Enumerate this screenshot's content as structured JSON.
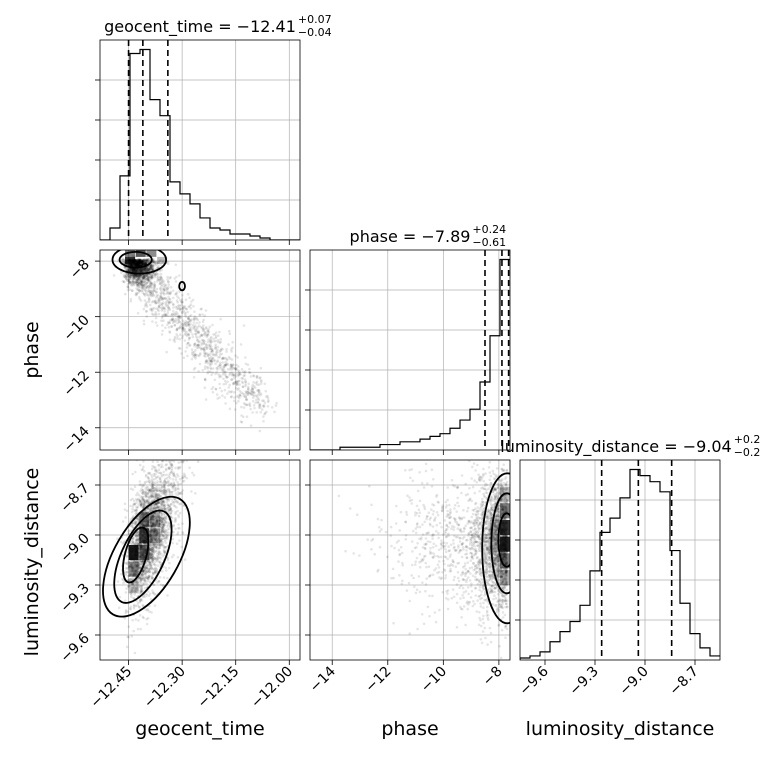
{
  "chart_data": {
    "type": "corner",
    "parameters": [
      "geocent_time",
      "phase",
      "luminosity_distance"
    ],
    "axis_labels": [
      "geocent_time",
      "phase",
      "luminosity_distance"
    ],
    "ranges": {
      "geocent_time": [
        -12.53,
        -11.97
      ],
      "phase": [
        -14.8,
        -7.6
      ],
      "luminosity_distance": [
        -9.75,
        -8.55
      ]
    },
    "ticks": {
      "geocent_time": [
        -12.45,
        -12.3,
        -12.15,
        -12.0
      ],
      "phase": [
        -14,
        -12,
        -10,
        -8
      ],
      "luminosity_distance": [
        -9.6,
        -9.3,
        -9.0,
        -8.7
      ]
    },
    "tick_labels": {
      "geocent_time": [
        "−12.45",
        "−12.30",
        "−12.15",
        "−12.00"
      ],
      "phase": [
        "−14",
        "−12",
        "−10",
        "−8"
      ],
      "luminosity_distance": [
        "−9.6",
        "−9.3",
        "−9.0",
        "−8.7"
      ]
    },
    "titles": {
      "geocent_time": {
        "prefix": "geocent_time = −12.41",
        "sup": "+0.07",
        "sub": "−0.04"
      },
      "phase": {
        "prefix": "phase = −7.89",
        "sup": "+0.24",
        "sub": "−0.61"
      },
      "luminosity_distance": {
        "prefix": "luminosity_distance = −9.04",
        "sup": "+0.20",
        "sub": "−0.22"
      }
    },
    "quantiles": {
      "geocent_time": [
        -12.45,
        -12.41,
        -12.34
      ],
      "phase": [
        -8.5,
        -7.89,
        -7.65
      ],
      "luminosity_distance": [
        -9.26,
        -9.04,
        -8.84
      ]
    },
    "histograms": {
      "geocent_time": {
        "edges": [
          -12.53,
          -12.502,
          -12.474,
          -12.446,
          -12.418,
          -12.39,
          -12.362,
          -12.334,
          -12.306,
          -12.278,
          -12.25,
          -12.222,
          -12.194,
          -12.166,
          -12.138,
          -12.11,
          -12.082,
          -12.054,
          -12.026,
          -11.998,
          -11.97
        ],
        "counts": [
          0.0,
          0.06,
          0.32,
          0.93,
          0.95,
          0.7,
          0.62,
          0.29,
          0.23,
          0.18,
          0.11,
          0.06,
          0.05,
          0.03,
          0.03,
          0.02,
          0.01,
          0.0,
          0.0,
          0.0
        ]
      },
      "phase": {
        "edges": [
          -14.8,
          -14.44,
          -14.08,
          -13.72,
          -13.36,
          -13.0,
          -12.64,
          -12.28,
          -11.92,
          -11.56,
          -11.2,
          -10.84,
          -10.48,
          -10.12,
          -9.76,
          -9.4,
          -9.04,
          -8.68,
          -8.32,
          -7.96,
          -7.6
        ],
        "counts": [
          0.0,
          0.0,
          0.0,
          0.01,
          0.01,
          0.01,
          0.01,
          0.02,
          0.02,
          0.03,
          0.03,
          0.04,
          0.05,
          0.06,
          0.08,
          0.11,
          0.15,
          0.25,
          0.42,
          0.7
        ]
      },
      "luminosity_distance": {
        "edges": [
          -9.75,
          -9.69,
          -9.63,
          -9.57,
          -9.51,
          -9.45,
          -9.39,
          -9.33,
          -9.27,
          -9.21,
          -9.15,
          -9.09,
          -9.03,
          -8.97,
          -8.91,
          -8.85,
          -8.79,
          -8.73,
          -8.67,
          -8.61,
          -8.55
        ],
        "counts": [
          0.01,
          0.02,
          0.04,
          0.09,
          0.14,
          0.19,
          0.27,
          0.44,
          0.63,
          0.7,
          0.8,
          0.94,
          0.91,
          0.88,
          0.83,
          0.54,
          0.28,
          0.13,
          0.06,
          0.02
        ]
      }
    },
    "contour_levels": 3
  }
}
